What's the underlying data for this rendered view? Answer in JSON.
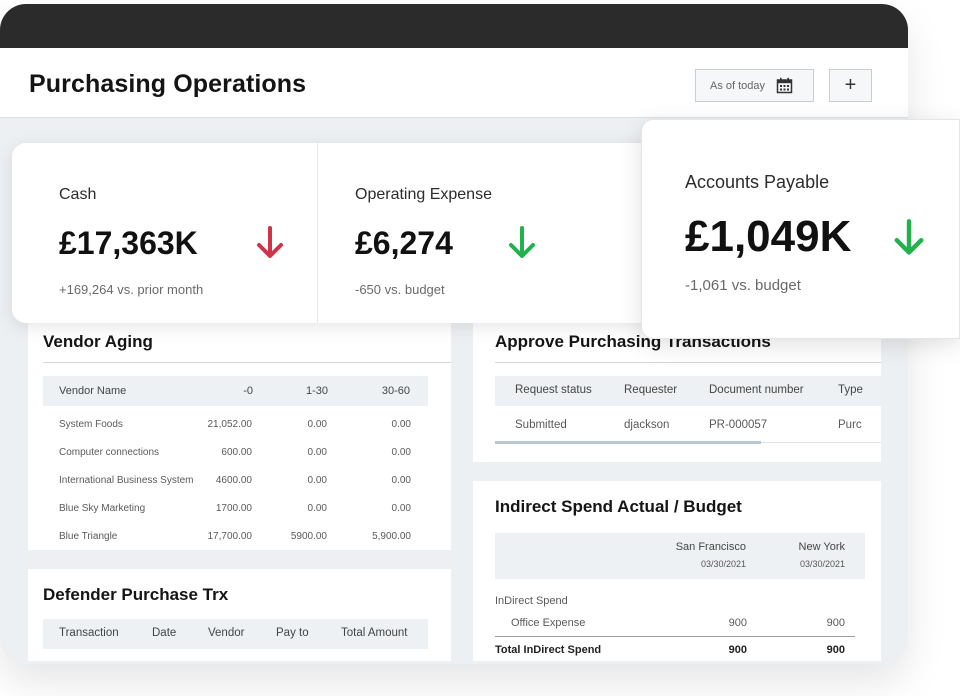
{
  "header": {
    "title": "Purchasing Operations",
    "date_filter": "As of today",
    "add_label": "+"
  },
  "kpis": {
    "cash": {
      "label": "Cash",
      "value": "£17,363K",
      "comparison": "+169,264 vs. prior month",
      "trend": "down",
      "trend_color": "#d0344a"
    },
    "operating_expense": {
      "label": "Operating Expense",
      "value": "£6,274",
      "comparison": "-650 vs. budget",
      "trend": "down",
      "trend_color": "#22b14c"
    },
    "accounts_payable": {
      "label": "Accounts Payable",
      "value": "£1,049K",
      "comparison": "-1,061 vs. budget",
      "trend": "down",
      "trend_color": "#22b14c"
    }
  },
  "vendor_aging": {
    "title": "Vendor Aging",
    "columns": [
      "Vendor Name",
      "-0",
      "1-30",
      "30-60"
    ],
    "rows": [
      [
        "System Foods",
        "21,052.00",
        "0.00",
        "0.00"
      ],
      [
        "Computer connections",
        "600.00",
        "0.00",
        "0.00"
      ],
      [
        "International Business System",
        "4600.00",
        "0.00",
        "0.00"
      ],
      [
        "Blue Sky Marketing",
        "1700.00",
        "0.00",
        "0.00"
      ],
      [
        "Blue Triangle",
        "17,700.00",
        "5900.00",
        "5,900.00"
      ]
    ]
  },
  "defender": {
    "title": "Defender Purchase Trx",
    "columns": [
      "Transaction",
      "Date",
      "Vendor",
      "Pay to",
      "Total Amount"
    ]
  },
  "approve": {
    "title": "Approve Purchasing Transactions",
    "columns": [
      "Request status",
      "Requester",
      "Document number",
      "Type"
    ],
    "row": [
      "Submitted",
      "djackson",
      "PR-000057",
      "Purc"
    ]
  },
  "indirect": {
    "title": "Indirect Spend Actual / Budget",
    "locations": [
      {
        "name": "San Francisco",
        "date": "03/30/2021"
      },
      {
        "name": "New York",
        "date": "03/30/2021"
      }
    ],
    "group_label": "InDirect Spend",
    "line": {
      "label": "Office Expense",
      "values": [
        "900",
        "900"
      ]
    },
    "total": {
      "label": "Total InDirect Spend",
      "values": [
        "900",
        "900"
      ]
    }
  },
  "icons": {
    "calendar": "calendar-icon",
    "arrow": "arrow-down-icon"
  }
}
